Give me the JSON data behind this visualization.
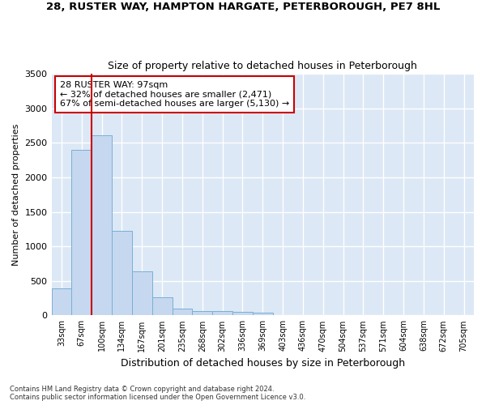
{
  "title1": "28, RUSTER WAY, HAMPTON HARGATE, PETERBOROUGH, PE7 8HL",
  "title2": "Size of property relative to detached houses in Peterborough",
  "xlabel": "Distribution of detached houses by size in Peterborough",
  "ylabel": "Number of detached properties",
  "categories": [
    "33sqm",
    "67sqm",
    "100sqm",
    "134sqm",
    "167sqm",
    "201sqm",
    "235sqm",
    "268sqm",
    "302sqm",
    "336sqm",
    "369sqm",
    "403sqm",
    "436sqm",
    "470sqm",
    "504sqm",
    "537sqm",
    "571sqm",
    "604sqm",
    "638sqm",
    "672sqm",
    "705sqm"
  ],
  "values": [
    390,
    2400,
    2610,
    1230,
    640,
    260,
    100,
    65,
    65,
    50,
    35,
    0,
    0,
    0,
    0,
    0,
    0,
    0,
    0,
    0,
    0
  ],
  "bar_color": "#c5d8f0",
  "bar_edge_color": "#7aafd4",
  "vline_color": "#cc0000",
  "annotation_text": "28 RUSTER WAY: 97sqm\n← 32% of detached houses are smaller (2,471)\n67% of semi-detached houses are larger (5,130) →",
  "annotation_box_color": "#ffffff",
  "annotation_box_edge": "#cc0000",
  "ylim": [
    0,
    3500
  ],
  "yticks": [
    0,
    500,
    1000,
    1500,
    2000,
    2500,
    3000,
    3500
  ],
  "plot_bg_color": "#dce8f5",
  "grid_color": "#ffffff",
  "fig_bg_color": "#ffffff",
  "footnote1": "Contains HM Land Registry data © Crown copyright and database right 2024.",
  "footnote2": "Contains public sector information licensed under the Open Government Licence v3.0."
}
